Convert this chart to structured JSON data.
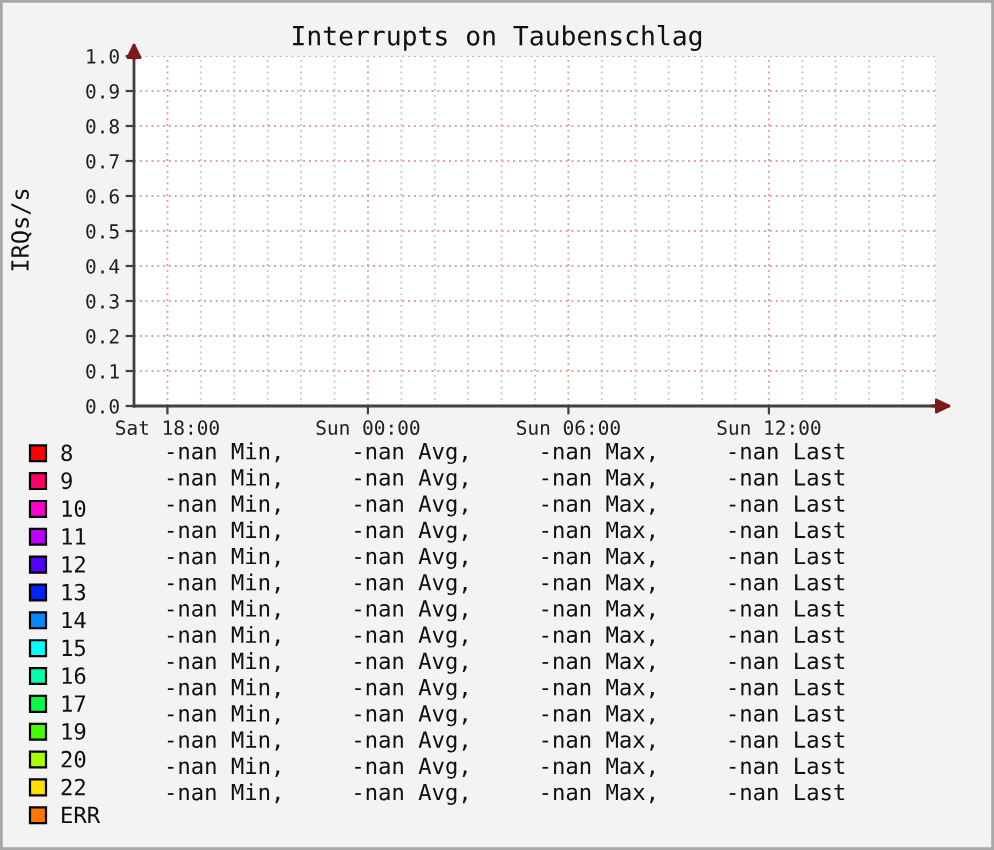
{
  "chart_data": {
    "type": "line",
    "title": "Interrupts on Taubenschlag",
    "ylabel": "IRQs/s",
    "categories": [
      null,
      "Sat 18:00",
      null,
      null,
      null,
      null,
      null,
      "Sun 00:00",
      null,
      null,
      null,
      null,
      null,
      "Sun 06:00",
      null,
      null,
      null,
      null,
      null,
      "Sun 12:00",
      null,
      null,
      null,
      null,
      null
    ],
    "ylim": [
      0,
      1
    ],
    "yticks": [
      {
        "value": 0,
        "label": "0.0"
      },
      {
        "value": 0.1,
        "label": "0.1"
      },
      {
        "value": 0.2,
        "label": "0.2"
      },
      {
        "value": 0.3,
        "label": "0.3"
      },
      {
        "value": 0.4,
        "label": "0.4"
      },
      {
        "value": 0.5,
        "label": "0.5"
      },
      {
        "value": 0.6,
        "label": "0.6"
      },
      {
        "value": 0.7,
        "label": "0.7"
      },
      {
        "value": 0.8,
        "label": "0.8"
      },
      {
        "value": 0.9,
        "label": "0.9"
      },
      {
        "value": 1,
        "label": "1.0"
      }
    ],
    "grid": true,
    "legend": "bottom",
    "series": [
      {
        "name": "8",
        "color": "#ff0000",
        "values": [
          null,
          null,
          null,
          null,
          null,
          null,
          null,
          null,
          null,
          null,
          null,
          null,
          null,
          null,
          null,
          null,
          null,
          null,
          null,
          null,
          null,
          null,
          null,
          null,
          null
        ]
      },
      {
        "name": "9",
        "color": "#ff0066",
        "values": [
          null,
          null,
          null,
          null,
          null,
          null,
          null,
          null,
          null,
          null,
          null,
          null,
          null,
          null,
          null,
          null,
          null,
          null,
          null,
          null,
          null,
          null,
          null,
          null,
          null
        ]
      },
      {
        "name": "10",
        "color": "#ff00cc",
        "values": [
          null,
          null,
          null,
          null,
          null,
          null,
          null,
          null,
          null,
          null,
          null,
          null,
          null,
          null,
          null,
          null,
          null,
          null,
          null,
          null,
          null,
          null,
          null,
          null,
          null
        ]
      },
      {
        "name": "11",
        "color": "#bb00ff",
        "values": [
          null,
          null,
          null,
          null,
          null,
          null,
          null,
          null,
          null,
          null,
          null,
          null,
          null,
          null,
          null,
          null,
          null,
          null,
          null,
          null,
          null,
          null,
          null,
          null,
          null
        ]
      },
      {
        "name": "12",
        "color": "#5500ff",
        "values": [
          null,
          null,
          null,
          null,
          null,
          null,
          null,
          null,
          null,
          null,
          null,
          null,
          null,
          null,
          null,
          null,
          null,
          null,
          null,
          null,
          null,
          null,
          null,
          null,
          null
        ]
      },
      {
        "name": "13",
        "color": "#0022ff",
        "values": [
          null,
          null,
          null,
          null,
          null,
          null,
          null,
          null,
          null,
          null,
          null,
          null,
          null,
          null,
          null,
          null,
          null,
          null,
          null,
          null,
          null,
          null,
          null,
          null,
          null
        ]
      },
      {
        "name": "14",
        "color": "#0088ff",
        "values": [
          null,
          null,
          null,
          null,
          null,
          null,
          null,
          null,
          null,
          null,
          null,
          null,
          null,
          null,
          null,
          null,
          null,
          null,
          null,
          null,
          null,
          null,
          null,
          null,
          null
        ]
      },
      {
        "name": "15",
        "color": "#00ffff",
        "values": [
          null,
          null,
          null,
          null,
          null,
          null,
          null,
          null,
          null,
          null,
          null,
          null,
          null,
          null,
          null,
          null,
          null,
          null,
          null,
          null,
          null,
          null,
          null,
          null,
          null
        ]
      },
      {
        "name": "16",
        "color": "#00ffaa",
        "values": [
          null,
          null,
          null,
          null,
          null,
          null,
          null,
          null,
          null,
          null,
          null,
          null,
          null,
          null,
          null,
          null,
          null,
          null,
          null,
          null,
          null,
          null,
          null,
          null,
          null
        ]
      },
      {
        "name": "17",
        "color": "#00ff44",
        "values": [
          null,
          null,
          null,
          null,
          null,
          null,
          null,
          null,
          null,
          null,
          null,
          null,
          null,
          null,
          null,
          null,
          null,
          null,
          null,
          null,
          null,
          null,
          null,
          null,
          null
        ]
      },
      {
        "name": "19",
        "color": "#44ff00",
        "values": [
          null,
          null,
          null,
          null,
          null,
          null,
          null,
          null,
          null,
          null,
          null,
          null,
          null,
          null,
          null,
          null,
          null,
          null,
          null,
          null,
          null,
          null,
          null,
          null,
          null
        ]
      },
      {
        "name": "20",
        "color": "#aaff00",
        "values": [
          null,
          null,
          null,
          null,
          null,
          null,
          null,
          null,
          null,
          null,
          null,
          null,
          null,
          null,
          null,
          null,
          null,
          null,
          null,
          null,
          null,
          null,
          null,
          null,
          null
        ]
      },
      {
        "name": "22",
        "color": "#ffdd00",
        "values": [
          null,
          null,
          null,
          null,
          null,
          null,
          null,
          null,
          null,
          null,
          null,
          null,
          null,
          null,
          null,
          null,
          null,
          null,
          null,
          null,
          null,
          null,
          null,
          null,
          null
        ]
      },
      {
        "name": "ERR",
        "color": "#ff7700",
        "values": [
          null,
          null,
          null,
          null,
          null,
          null,
          null,
          null,
          null,
          null,
          null,
          null,
          null,
          null,
          null,
          null,
          null,
          null,
          null,
          null,
          null,
          null,
          null,
          null,
          null
        ]
      }
    ],
    "annotations": [
      "-nan Min,     -nan Avg,     -nan Max,     -nan Last",
      "-nan Min,     -nan Avg,     -nan Max,     -nan Last",
      "-nan Min,     -nan Avg,     -nan Max,     -nan Last",
      "-nan Min,     -nan Avg,     -nan Max,     -nan Last",
      "-nan Min,     -nan Avg,     -nan Max,     -nan Last",
      "-nan Min,     -nan Avg,     -nan Max,     -nan Last",
      "-nan Min,     -nan Avg,     -nan Max,     -nan Last",
      "-nan Min,     -nan Avg,     -nan Max,     -nan Last",
      "-nan Min,     -nan Avg,     -nan Max,     -nan Last",
      "-nan Min,     -nan Avg,     -nan Max,     -nan Last",
      "-nan Min,     -nan Avg,     -nan Max,     -nan Last",
      "-nan Min,     -nan Avg,     -nan Max,     -nan Last",
      "-nan Min,     -nan Avg,     -nan Max,     -nan Last",
      "-nan Min,     -nan Avg,     -nan Max,     -nan Last"
    ]
  }
}
